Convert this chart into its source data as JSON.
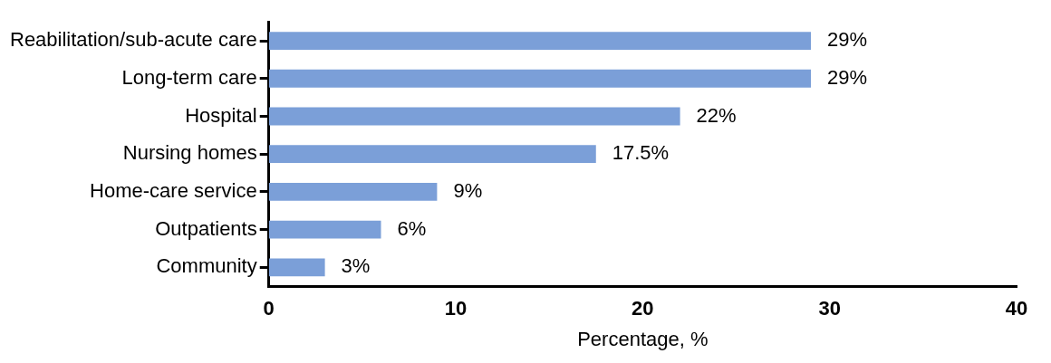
{
  "chart_data": {
    "type": "bar",
    "orientation": "horizontal",
    "xlabel": "Percentage, %",
    "categories": [
      "Reabilitation/sub-acute care",
      "Long-term care",
      "Hospital",
      "Nursing homes",
      "Home-care service",
      "Outpatients",
      "Community"
    ],
    "values": [
      29,
      29,
      22,
      17.5,
      9,
      6,
      3
    ],
    "value_labels": [
      "29%",
      "29%",
      "22%",
      "17.5%",
      "9%",
      "6%",
      "3%"
    ],
    "color": "#7b9fd8",
    "xlim": [
      0,
      40
    ],
    "xticks": [
      0,
      10,
      20,
      30,
      40
    ],
    "grid": false,
    "legend": false
  }
}
